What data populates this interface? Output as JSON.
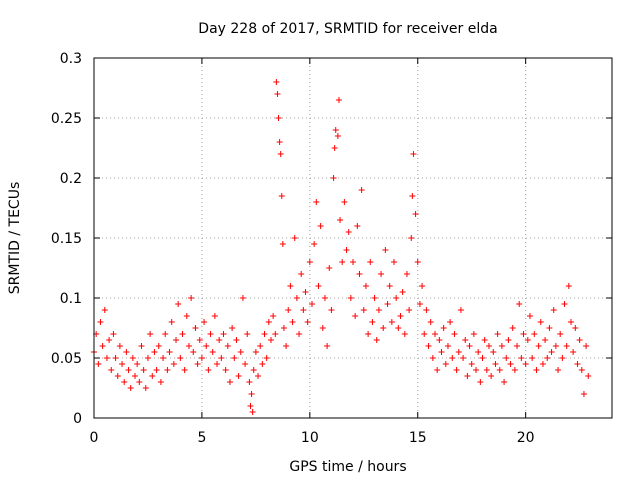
{
  "chart_data": {
    "type": "scatter",
    "title": "Day 228 of 2017, SRMTID for receiver elda",
    "xlabel": "GPS time / hours",
    "ylabel": "SRMTID / TECUs",
    "xlim": [
      0,
      24
    ],
    "ylim": [
      0,
      0.3
    ],
    "xticks": [
      0,
      5,
      10,
      15,
      20
    ],
    "yticks": [
      0,
      0.05,
      0.1,
      0.15,
      0.2,
      0.25,
      0.3
    ],
    "xtick_labels": [
      "0",
      "5",
      "10",
      "15",
      "20"
    ],
    "ytick_labels": [
      "0",
      "0.05",
      "0.1",
      "0.15",
      "0.2",
      "0.25",
      "0.3"
    ],
    "grid": true,
    "marker": "+",
    "series": [
      {
        "name": "SRMTID",
        "color": "#ff0000",
        "points": [
          [
            0.0,
            0.055
          ],
          [
            0.1,
            0.07
          ],
          [
            0.2,
            0.045
          ],
          [
            0.3,
            0.08
          ],
          [
            0.4,
            0.06
          ],
          [
            0.5,
            0.09
          ],
          [
            0.6,
            0.05
          ],
          [
            0.7,
            0.065
          ],
          [
            0.8,
            0.04
          ],
          [
            0.9,
            0.07
          ],
          [
            1.0,
            0.05
          ],
          [
            1.1,
            0.035
          ],
          [
            1.2,
            0.06
          ],
          [
            1.3,
            0.045
          ],
          [
            1.4,
            0.03
          ],
          [
            1.5,
            0.055
          ],
          [
            1.6,
            0.04
          ],
          [
            1.7,
            0.025
          ],
          [
            1.8,
            0.05
          ],
          [
            1.9,
            0.035
          ],
          [
            2.0,
            0.045
          ],
          [
            2.1,
            0.03
          ],
          [
            2.2,
            0.06
          ],
          [
            2.3,
            0.04
          ],
          [
            2.4,
            0.025
          ],
          [
            2.5,
            0.05
          ],
          [
            2.6,
            0.07
          ],
          [
            2.7,
            0.035
          ],
          [
            2.8,
            0.055
          ],
          [
            2.9,
            0.04
          ],
          [
            3.0,
            0.06
          ],
          [
            3.1,
            0.03
          ],
          [
            3.2,
            0.05
          ],
          [
            3.3,
            0.07
          ],
          [
            3.4,
            0.04
          ],
          [
            3.5,
            0.055
          ],
          [
            3.6,
            0.08
          ],
          [
            3.7,
            0.045
          ],
          [
            3.8,
            0.065
          ],
          [
            3.9,
            0.095
          ],
          [
            4.0,
            0.05
          ],
          [
            4.1,
            0.07
          ],
          [
            4.2,
            0.04
          ],
          [
            4.3,
            0.085
          ],
          [
            4.4,
            0.06
          ],
          [
            4.5,
            0.1
          ],
          [
            4.6,
            0.055
          ],
          [
            4.7,
            0.075
          ],
          [
            4.8,
            0.045
          ],
          [
            4.9,
            0.065
          ],
          [
            5.0,
            0.05
          ],
          [
            5.1,
            0.08
          ],
          [
            5.2,
            0.06
          ],
          [
            5.3,
            0.04
          ],
          [
            5.4,
            0.07
          ],
          [
            5.5,
            0.055
          ],
          [
            5.6,
            0.085
          ],
          [
            5.7,
            0.045
          ],
          [
            5.8,
            0.065
          ],
          [
            5.9,
            0.05
          ],
          [
            6.0,
            0.07
          ],
          [
            6.1,
            0.04
          ],
          [
            6.2,
            0.06
          ],
          [
            6.3,
            0.03
          ],
          [
            6.4,
            0.075
          ],
          [
            6.5,
            0.05
          ],
          [
            6.6,
            0.065
          ],
          [
            6.7,
            0.035
          ],
          [
            6.8,
            0.055
          ],
          [
            6.9,
            0.1
          ],
          [
            7.0,
            0.045
          ],
          [
            7.1,
            0.07
          ],
          [
            7.2,
            0.03
          ],
          [
            7.25,
            0.01
          ],
          [
            7.3,
            0.02
          ],
          [
            7.35,
            0.005
          ],
          [
            7.4,
            0.04
          ],
          [
            7.5,
            0.055
          ],
          [
            7.6,
            0.035
          ],
          [
            7.7,
            0.06
          ],
          [
            7.8,
            0.045
          ],
          [
            7.9,
            0.07
          ],
          [
            8.0,
            0.05
          ],
          [
            8.1,
            0.08
          ],
          [
            8.2,
            0.065
          ],
          [
            8.3,
            0.085
          ],
          [
            8.4,
            0.07
          ],
          [
            8.45,
            0.28
          ],
          [
            8.5,
            0.27
          ],
          [
            8.55,
            0.25
          ],
          [
            8.6,
            0.23
          ],
          [
            8.65,
            0.22
          ],
          [
            8.7,
            0.185
          ],
          [
            8.75,
            0.145
          ],
          [
            8.8,
            0.075
          ],
          [
            8.9,
            0.06
          ],
          [
            9.0,
            0.09
          ],
          [
            9.1,
            0.11
          ],
          [
            9.2,
            0.08
          ],
          [
            9.3,
            0.15
          ],
          [
            9.4,
            0.1
          ],
          [
            9.5,
            0.07
          ],
          [
            9.6,
            0.12
          ],
          [
            9.7,
            0.09
          ],
          [
            9.8,
            0.105
          ],
          [
            9.9,
            0.08
          ],
          [
            10.0,
            0.13
          ],
          [
            10.1,
            0.095
          ],
          [
            10.2,
            0.145
          ],
          [
            10.3,
            0.18
          ],
          [
            10.4,
            0.11
          ],
          [
            10.5,
            0.16
          ],
          [
            10.6,
            0.075
          ],
          [
            10.7,
            0.1
          ],
          [
            10.8,
            0.06
          ],
          [
            10.9,
            0.125
          ],
          [
            11.0,
            0.09
          ],
          [
            11.1,
            0.2
          ],
          [
            11.15,
            0.225
          ],
          [
            11.2,
            0.24
          ],
          [
            11.3,
            0.235
          ],
          [
            11.35,
            0.265
          ],
          [
            11.4,
            0.165
          ],
          [
            11.5,
            0.13
          ],
          [
            11.6,
            0.18
          ],
          [
            11.7,
            0.14
          ],
          [
            11.8,
            0.155
          ],
          [
            11.9,
            0.1
          ],
          [
            12.0,
            0.13
          ],
          [
            12.1,
            0.085
          ],
          [
            12.2,
            0.16
          ],
          [
            12.3,
            0.12
          ],
          [
            12.4,
            0.19
          ],
          [
            12.5,
            0.09
          ],
          [
            12.6,
            0.11
          ],
          [
            12.7,
            0.07
          ],
          [
            12.8,
            0.13
          ],
          [
            12.9,
            0.08
          ],
          [
            13.0,
            0.1
          ],
          [
            13.1,
            0.065
          ],
          [
            13.2,
            0.09
          ],
          [
            13.3,
            0.12
          ],
          [
            13.4,
            0.075
          ],
          [
            13.5,
            0.14
          ],
          [
            13.6,
            0.095
          ],
          [
            13.7,
            0.11
          ],
          [
            13.8,
            0.08
          ],
          [
            13.9,
            0.13
          ],
          [
            14.0,
            0.1
          ],
          [
            14.1,
            0.075
          ],
          [
            14.2,
            0.085
          ],
          [
            14.3,
            0.105
          ],
          [
            14.4,
            0.07
          ],
          [
            14.5,
            0.12
          ],
          [
            14.6,
            0.09
          ],
          [
            14.7,
            0.15
          ],
          [
            14.75,
            0.185
          ],
          [
            14.8,
            0.22
          ],
          [
            14.9,
            0.17
          ],
          [
            15.0,
            0.13
          ],
          [
            15.1,
            0.095
          ],
          [
            15.2,
            0.11
          ],
          [
            15.3,
            0.07
          ],
          [
            15.4,
            0.09
          ],
          [
            15.5,
            0.06
          ],
          [
            15.6,
            0.08
          ],
          [
            15.7,
            0.05
          ],
          [
            15.8,
            0.07
          ],
          [
            15.9,
            0.04
          ],
          [
            16.0,
            0.065
          ],
          [
            16.1,
            0.055
          ],
          [
            16.2,
            0.075
          ],
          [
            16.3,
            0.045
          ],
          [
            16.4,
            0.06
          ],
          [
            16.5,
            0.08
          ],
          [
            16.6,
            0.05
          ],
          [
            16.7,
            0.07
          ],
          [
            16.8,
            0.04
          ],
          [
            16.9,
            0.055
          ],
          [
            17.0,
            0.09
          ],
          [
            17.1,
            0.05
          ],
          [
            17.2,
            0.065
          ],
          [
            17.3,
            0.035
          ],
          [
            17.4,
            0.06
          ],
          [
            17.5,
            0.045
          ],
          [
            17.6,
            0.07
          ],
          [
            17.7,
            0.04
          ],
          [
            17.8,
            0.055
          ],
          [
            17.9,
            0.03
          ],
          [
            18.0,
            0.05
          ],
          [
            18.1,
            0.065
          ],
          [
            18.2,
            0.04
          ],
          [
            18.3,
            0.06
          ],
          [
            18.4,
            0.035
          ],
          [
            18.5,
            0.055
          ],
          [
            18.6,
            0.045
          ],
          [
            18.7,
            0.07
          ],
          [
            18.8,
            0.04
          ],
          [
            18.9,
            0.06
          ],
          [
            19.0,
            0.03
          ],
          [
            19.1,
            0.05
          ],
          [
            19.2,
            0.065
          ],
          [
            19.3,
            0.045
          ],
          [
            19.4,
            0.075
          ],
          [
            19.5,
            0.04
          ],
          [
            19.6,
            0.06
          ],
          [
            19.7,
            0.095
          ],
          [
            19.8,
            0.05
          ],
          [
            19.9,
            0.07
          ],
          [
            20.0,
            0.045
          ],
          [
            20.1,
            0.065
          ],
          [
            20.2,
            0.085
          ],
          [
            20.3,
            0.05
          ],
          [
            20.4,
            0.07
          ],
          [
            20.5,
            0.04
          ],
          [
            20.6,
            0.06
          ],
          [
            20.7,
            0.08
          ],
          [
            20.8,
            0.045
          ],
          [
            20.9,
            0.065
          ],
          [
            21.0,
            0.05
          ],
          [
            21.1,
            0.075
          ],
          [
            21.2,
            0.055
          ],
          [
            21.3,
            0.09
          ],
          [
            21.4,
            0.06
          ],
          [
            21.5,
            0.04
          ],
          [
            21.6,
            0.07
          ],
          [
            21.7,
            0.05
          ],
          [
            21.8,
            0.095
          ],
          [
            21.9,
            0.06
          ],
          [
            22.0,
            0.11
          ],
          [
            22.1,
            0.08
          ],
          [
            22.2,
            0.055
          ],
          [
            22.3,
            0.075
          ],
          [
            22.4,
            0.045
          ],
          [
            22.5,
            0.065
          ],
          [
            22.6,
            0.04
          ],
          [
            22.7,
            0.02
          ],
          [
            22.8,
            0.06
          ],
          [
            22.9,
            0.035
          ]
        ]
      }
    ]
  }
}
